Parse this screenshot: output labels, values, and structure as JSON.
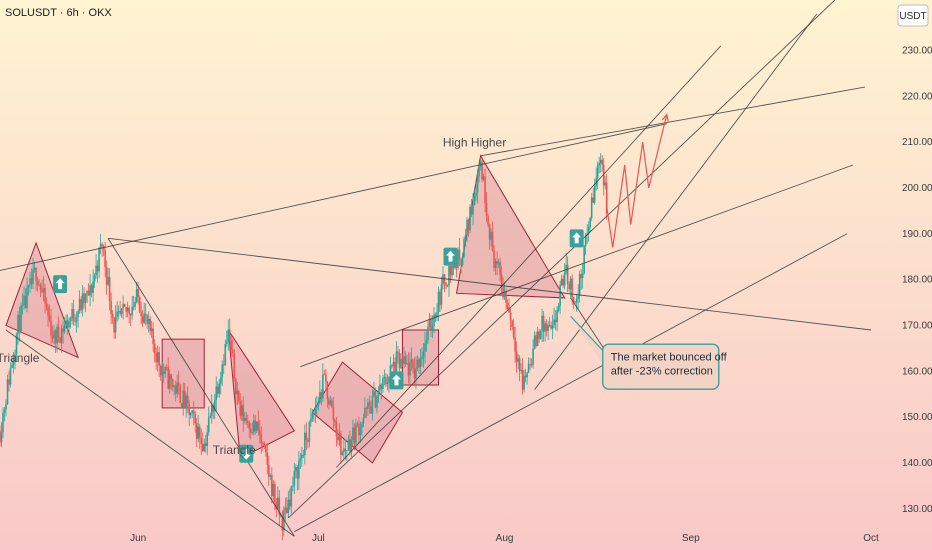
{
  "header": {
    "symbol": "SOLUSDT · 6h · OKX",
    "currency_badge": "USDT"
  },
  "colors": {
    "bg_top": "#fff4d2",
    "bg_bottom": "#f9c8c8",
    "candle_up": "#26a69a",
    "candle_down": "#ef5350",
    "trendline": "#3a3a3a",
    "pattern_fill": "#d98a96",
    "pattern_stroke": "#a6203a",
    "marker_bg": "#3aa19a",
    "callout_border": "#3aa19a",
    "callout_bg": "#f3d3c6",
    "projection": "#ef5350"
  },
  "chart_data": {
    "type": "candlestick",
    "x_tick_labels": [
      "Jun",
      "Jul",
      "Aug",
      "Sep",
      "Oct"
    ],
    "x_tick_dates": [
      "2024-06-01",
      "2024-07-01",
      "2024-08-01",
      "2024-09-01",
      "2024-10-01"
    ],
    "x_range": [
      "2024-05-09",
      "2024-10-03"
    ],
    "y_axis": {
      "side": "right",
      "ticks": [
        130,
        140,
        150,
        160,
        170,
        180,
        190,
        200,
        210,
        220,
        230
      ],
      "range": [
        121,
        241
      ],
      "unit": "USDT"
    },
    "price_path_keypoints": [
      {
        "date": "2024-05-09",
        "price": 147
      },
      {
        "date": "2024-05-12",
        "price": 170
      },
      {
        "date": "2024-05-15",
        "price": 182
      },
      {
        "date": "2024-05-18",
        "price": 167
      },
      {
        "date": "2024-05-21",
        "price": 172
      },
      {
        "date": "2024-05-24",
        "price": 177
      },
      {
        "date": "2024-05-26",
        "price": 188
      },
      {
        "date": "2024-05-28",
        "price": 170
      },
      {
        "date": "2024-06-01",
        "price": 176
      },
      {
        "date": "2024-06-05",
        "price": 160
      },
      {
        "date": "2024-06-08",
        "price": 155
      },
      {
        "date": "2024-06-12",
        "price": 144
      },
      {
        "date": "2024-06-16",
        "price": 168
      },
      {
        "date": "2024-06-18",
        "price": 151
      },
      {
        "date": "2024-06-21",
        "price": 147
      },
      {
        "date": "2024-06-24",
        "price": 131
      },
      {
        "date": "2024-06-25",
        "price": 127
      },
      {
        "date": "2024-06-28",
        "price": 141
      },
      {
        "date": "2024-07-02",
        "price": 158
      },
      {
        "date": "2024-07-05",
        "price": 142
      },
      {
        "date": "2024-07-09",
        "price": 151
      },
      {
        "date": "2024-07-14",
        "price": 162
      },
      {
        "date": "2024-07-17",
        "price": 160
      },
      {
        "date": "2024-07-19",
        "price": 167
      },
      {
        "date": "2024-07-22",
        "price": 180
      },
      {
        "date": "2024-07-25",
        "price": 186
      },
      {
        "date": "2024-07-28",
        "price": 206
      },
      {
        "date": "2024-07-30",
        "price": 186
      },
      {
        "date": "2024-08-02",
        "price": 172
      },
      {
        "date": "2024-08-04",
        "price": 157
      },
      {
        "date": "2024-08-07",
        "price": 170
      },
      {
        "date": "2024-08-09",
        "price": 168
      },
      {
        "date": "2024-08-11",
        "price": 182
      },
      {
        "date": "2024-08-13",
        "price": 175
      },
      {
        "date": "2024-08-15",
        "price": 192
      },
      {
        "date": "2024-08-17",
        "price": 208
      },
      {
        "date": "2024-08-18",
        "price": 196
      }
    ],
    "projection_path": [
      {
        "date": "2024-08-18",
        "price": 196
      },
      {
        "date": "2024-08-19",
        "price": 187
      },
      {
        "date": "2024-08-21",
        "price": 205
      },
      {
        "date": "2024-08-22",
        "price": 192
      },
      {
        "date": "2024-08-24",
        "price": 210
      },
      {
        "date": "2024-08-25",
        "price": 200
      },
      {
        "date": "2024-08-28",
        "price": 216
      }
    ],
    "trendlines": [
      {
        "from": {
          "date": "2024-05-09",
          "price": 182
        },
        "to": {
          "date": "2024-08-28",
          "price": 214
        }
      },
      {
        "from": {
          "date": "2024-05-27",
          "price": 189
        },
        "to": {
          "date": "2024-10-01",
          "price": 169
        }
      },
      {
        "from": {
          "date": "2024-05-27",
          "price": 189
        },
        "to": {
          "date": "2024-06-27",
          "price": 124
        }
      },
      {
        "from": {
          "date": "2024-05-10",
          "price": 169
        },
        "to": {
          "date": "2024-06-27",
          "price": 124
        }
      },
      {
        "from": {
          "date": "2024-06-26",
          "price": 128
        },
        "to": {
          "date": "2024-09-25",
          "price": 241
        }
      },
      {
        "from": {
          "date": "2024-06-27",
          "price": 125
        },
        "to": {
          "date": "2024-09-27",
          "price": 190
        }
      },
      {
        "from": {
          "date": "2024-06-28",
          "price": 161
        },
        "to": {
          "date": "2024-09-28",
          "price": 205
        }
      },
      {
        "from": {
          "date": "2024-07-04",
          "price": 139
        },
        "to": {
          "date": "2024-09-06",
          "price": 231
        }
      },
      {
        "from": {
          "date": "2024-07-28",
          "price": 207
        },
        "to": {
          "date": "2024-09-30",
          "price": 222
        }
      },
      {
        "from": {
          "date": "2024-08-06",
          "price": 156
        },
        "to": {
          "date": "2024-09-22",
          "price": 238
        }
      },
      {
        "from": {
          "date": "2024-08-12",
          "price": 176
        },
        "to": {
          "date": "2024-08-22",
          "price": 156
        }
      }
    ],
    "patterns": [
      {
        "shape": "triangle",
        "points": [
          {
            "date": "2024-05-10",
            "price": 170
          },
          {
            "date": "2024-05-15",
            "price": 188
          },
          {
            "date": "2024-05-22",
            "price": 163
          }
        ]
      },
      {
        "shape": "rect",
        "points": [
          {
            "date": "2024-06-05",
            "price": 167
          },
          {
            "date": "2024-06-12",
            "price": 152
          }
        ]
      },
      {
        "shape": "triangle",
        "points": [
          {
            "date": "2024-06-16",
            "price": 169
          },
          {
            "date": "2024-06-18",
            "price": 141
          },
          {
            "date": "2024-06-27",
            "price": 147
          }
        ]
      },
      {
        "shape": "quad",
        "points": [
          {
            "date": "2024-06-30",
            "price": 151
          },
          {
            "date": "2024-07-05",
            "price": 162
          },
          {
            "date": "2024-07-15",
            "price": 151
          },
          {
            "date": "2024-07-10",
            "price": 140
          }
        ]
      },
      {
        "shape": "rect",
        "points": [
          {
            "date": "2024-07-15",
            "price": 169
          },
          {
            "date": "2024-07-21",
            "price": 157
          }
        ]
      },
      {
        "shape": "triangle",
        "points": [
          {
            "date": "2024-07-24",
            "price": 177
          },
          {
            "date": "2024-07-28",
            "price": 207
          },
          {
            "date": "2024-08-11",
            "price": 176
          }
        ]
      }
    ],
    "markers": [
      {
        "direction": "up",
        "date": "2024-05-19",
        "price": 179
      },
      {
        "direction": "down",
        "date": "2024-06-19",
        "price": 142
      },
      {
        "direction": "up",
        "date": "2024-07-14",
        "price": 158
      },
      {
        "direction": "up",
        "date": "2024-07-23",
        "price": 185
      },
      {
        "direction": "up",
        "date": "2024-08-13",
        "price": 189
      }
    ],
    "annotations": [
      {
        "text": "Triangle",
        "date": "2024-05-12",
        "price": 162
      },
      {
        "text": "Triangle",
        "date": "2024-06-17",
        "price": 142
      },
      {
        "text": "High Higher",
        "date": "2024-07-27",
        "price": 209
      }
    ],
    "callout": {
      "lines": [
        "The market bounced off",
        "after -23% correction"
      ],
      "anchor": {
        "date": "2024-08-12",
        "price": 172
      },
      "box_at": {
        "date": "2024-08-27",
        "price": 161
      }
    }
  }
}
